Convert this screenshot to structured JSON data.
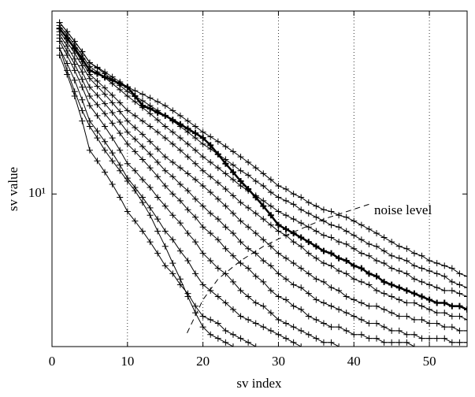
{
  "chart_data": {
    "type": "line",
    "x_label": "sv index",
    "y_label": "sv value",
    "xlim": [
      0,
      55
    ],
    "xticks": [
      0,
      10,
      20,
      30,
      40,
      50
    ],
    "grid": "x",
    "ylim": [
      4,
      30
    ],
    "yticks": [
      {
        "value": 10,
        "label": "10¹"
      }
    ],
    "log_y": true,
    "x": [
      1,
      2,
      3,
      4,
      5,
      6,
      7,
      8,
      9,
      10,
      11,
      12,
      13,
      14,
      15,
      16,
      17,
      18,
      19,
      20,
      21,
      22,
      23,
      24,
      25,
      26,
      27,
      28,
      29,
      30,
      31,
      32,
      33,
      34,
      35,
      36,
      37,
      38,
      39,
      40,
      41,
      42,
      43,
      44,
      45,
      46,
      47,
      48,
      49,
      50,
      51,
      52,
      53,
      54,
      55
    ],
    "series": [
      {
        "color": "#000000",
        "line_width": 1,
        "values": [
          28,
          26.5,
          25,
          23.5,
          22,
          21.4,
          20.8,
          20.2,
          19.6,
          19,
          18.6,
          18.2,
          17.8,
          17.4,
          17,
          16.5,
          16,
          15.5,
          15,
          14.5,
          14.1,
          13.7,
          13.3,
          12.9,
          12.5,
          12.1,
          11.7,
          11.3,
          10.9,
          10.5,
          10.3,
          10,
          9.8,
          9.5,
          9.3,
          9.1,
          9,
          8.8,
          8.7,
          8.5,
          8.3,
          8.1,
          7.9,
          7.7,
          7.5,
          7.3,
          7.2,
          7,
          6.9,
          6.7,
          6.6,
          6.5,
          6.4,
          6.2,
          6.1
        ]
      },
      {
        "color": "#000000",
        "line_width": 1,
        "values": [
          28,
          26.5,
          25,
          23.5,
          22,
          21.3,
          20.6,
          19.9,
          19.2,
          18.5,
          18,
          17.5,
          17,
          16.5,
          16,
          15.5,
          15,
          14.5,
          14,
          13.5,
          13.1,
          12.7,
          12.3,
          11.9,
          11.5,
          11.2,
          10.8,
          10.5,
          10.1,
          9.8,
          9.6,
          9.4,
          9.1,
          8.9,
          8.7,
          8.5,
          8.3,
          8.2,
          8,
          7.8,
          7.6,
          7.4,
          7.3,
          7.1,
          6.9,
          6.8,
          6.7,
          6.5,
          6.4,
          6.3,
          6.2,
          6.1,
          5.9,
          5.8,
          5.7
        ]
      },
      {
        "color": "#000000",
        "line_width": 1,
        "values": [
          27.5,
          26,
          24.5,
          23,
          21.5,
          20.8,
          20.1,
          19.4,
          18.7,
          18,
          17.4,
          16.8,
          16.2,
          15.6,
          15,
          14.5,
          14,
          13.5,
          13,
          12.5,
          12.1,
          11.7,
          11.3,
          10.9,
          10.5,
          10.2,
          9.9,
          9.6,
          9.3,
          9,
          8.8,
          8.6,
          8.4,
          8.2,
          8,
          7.8,
          7.7,
          7.5,
          7.4,
          7.2,
          7,
          6.9,
          6.7,
          6.6,
          6.4,
          6.3,
          6.2,
          6,
          5.9,
          5.8,
          5.7,
          5.6,
          5.6,
          5.5,
          5.4
        ]
      },
      {
        "color": "#000000",
        "line_width": 2.5,
        "values": [
          27,
          25.5,
          24,
          22.5,
          21,
          20.6,
          20.2,
          19.8,
          19.4,
          19,
          18,
          17,
          16.7,
          16.3,
          16,
          15.6,
          15.2,
          14.8,
          14.4,
          14,
          13.4,
          12.7,
          12,
          11.4,
          10.8,
          10.3,
          9.8,
          9.3,
          8.8,
          8.3,
          8.1,
          7.9,
          7.7,
          7.5,
          7.3,
          7.1,
          7,
          6.8,
          6.7,
          6.5,
          6.4,
          6.2,
          6.1,
          5.9,
          5.8,
          5.7,
          5.6,
          5.5,
          5.4,
          5.3,
          5.2,
          5.2,
          5.1,
          5.1,
          5
        ]
      },
      {
        "color": "#000000",
        "line_width": 1,
        "values": [
          27,
          25.4,
          23.8,
          22.1,
          20.5,
          19.7,
          18.9,
          18.1,
          17.3,
          16.5,
          16,
          15.5,
          15,
          14.5,
          14,
          13.5,
          13,
          12.5,
          12,
          11.5,
          11.1,
          10.7,
          10.3,
          9.9,
          9.5,
          9.2,
          8.9,
          8.6,
          8.3,
          8,
          7.8,
          7.5,
          7.3,
          7,
          6.8,
          6.6,
          6.5,
          6.3,
          6.2,
          6,
          5.9,
          5.8,
          5.6,
          5.5,
          5.4,
          5.3,
          5.2,
          5.2,
          5.1,
          5,
          4.9,
          4.9,
          4.8,
          4.8,
          4.7
        ]
      },
      {
        "color": "#000000",
        "line_width": 1,
        "values": [
          26.5,
          24.9,
          23.3,
          21.6,
          20,
          19.1,
          18.2,
          17.3,
          16.4,
          15.5,
          14.9,
          14.3,
          13.7,
          13.1,
          12.5,
          12.1,
          11.7,
          11.3,
          10.9,
          10.5,
          10.1,
          9.7,
          9.3,
          8.9,
          8.5,
          8.2,
          7.9,
          7.6,
          7.3,
          7,
          6.8,
          6.6,
          6.4,
          6.2,
          6,
          5.9,
          5.7,
          5.6,
          5.4,
          5.3,
          5.2,
          5.1,
          5.1,
          5,
          4.9,
          4.8,
          4.8,
          4.7,
          4.7,
          4.6,
          4.6,
          4.5,
          4.5,
          4.4,
          4.4
        ]
      },
      {
        "color": "#000000",
        "line_width": 1,
        "values": [
          26,
          24.3,
          22.5,
          20.8,
          19,
          18.1,
          17.2,
          16.3,
          15.4,
          14.5,
          13.9,
          13.3,
          12.7,
          12.1,
          11.5,
          11.1,
          10.6,
          10.2,
          9.7,
          9.3,
          8.9,
          8.6,
          8.2,
          7.9,
          7.5,
          7.2,
          7,
          6.7,
          6.5,
          6.2,
          6,
          5.8,
          5.7,
          5.5,
          5.3,
          5.2,
          5.1,
          5,
          4.9,
          4.8,
          4.7,
          4.6,
          4.6,
          4.5,
          4.4,
          4.4,
          4.3,
          4.3,
          4.2,
          4.2,
          4.2,
          4.2,
          4.1,
          4.1,
          4.1
        ]
      },
      {
        "color": "#000000",
        "line_width": 1,
        "values": [
          25.5,
          23.6,
          21.8,
          19.9,
          18,
          17.1,
          16.2,
          15.3,
          14.4,
          13.5,
          12.9,
          12.3,
          11.7,
          11.1,
          10.5,
          10,
          9.6,
          9.1,
          8.7,
          8.2,
          7.9,
          7.6,
          7.2,
          6.9,
          6.6,
          6.4,
          6.1,
          5.9,
          5.6,
          5.4,
          5.3,
          5.1,
          5,
          4.8,
          4.7,
          4.6,
          4.5,
          4.5,
          4.4,
          4.3,
          4.3,
          4.2,
          4.2,
          4.1,
          4.1,
          4.1,
          4.1,
          4.0,
          null,
          null,
          null,
          null,
          null,
          null,
          null
        ]
      },
      {
        "color": "#000000",
        "line_width": 1,
        "values": [
          25,
          23,
          21,
          19,
          17,
          16,
          15,
          14,
          13,
          12,
          11.5,
          10.9,
          10.4,
          9.8,
          9.3,
          8.8,
          8.4,
          7.9,
          7.5,
          7,
          6.7,
          6.4,
          6.2,
          5.9,
          5.6,
          5.4,
          5.2,
          5.1,
          4.9,
          4.7,
          4.6,
          4.5,
          4.4,
          4.3,
          4.2,
          4.1,
          4.1,
          4.0,
          null,
          null,
          null,
          null,
          null,
          null,
          null,
          null,
          null,
          null,
          null,
          null,
          null,
          null,
          null,
          null,
          null
        ]
      },
      {
        "color": "#000000",
        "line_width": 1,
        "values": [
          24,
          21.9,
          19.8,
          17.6,
          15.5,
          14.6,
          13.7,
          12.8,
          11.9,
          11,
          10.4,
          9.8,
          9.2,
          8.6,
          8,
          7.6,
          7.1,
          6.7,
          6.2,
          5.8,
          5.6,
          5.4,
          5.2,
          5,
          4.8,
          4.7,
          4.6,
          4.5,
          4.4,
          4.3,
          4.2,
          4.1,
          4.0,
          null,
          null,
          null,
          null,
          null,
          null,
          null,
          null,
          null,
          null,
          null,
          null,
          null,
          null,
          null,
          null,
          null,
          null,
          null,
          null,
          null,
          null
        ]
      },
      {
        "color": "#000000",
        "line_width": 1,
        "values": [
          23,
          20.5,
          18,
          15.5,
          13,
          12.2,
          11.4,
          10.6,
          9.8,
          9,
          8.5,
          8,
          7.5,
          7,
          6.5,
          6.2,
          5.8,
          5.5,
          5.1,
          4.8,
          4.7,
          4.6,
          4.4,
          4.3,
          4.2,
          4.1,
          4.0,
          null,
          null,
          null,
          null,
          null,
          null,
          null,
          null,
          null,
          null,
          null,
          null,
          null,
          null,
          null,
          null,
          null,
          null,
          null,
          null,
          null,
          null,
          null,
          null,
          null,
          null,
          null,
          null
        ]
      },
      {
        "color": "#000000",
        "line_width": 1,
        "values": [
          24,
          21,
          18.5,
          16.5,
          15,
          14,
          13,
          12.2,
          11.5,
          10.8,
          10.2,
          9.5,
          8.8,
          8,
          7.3,
          6.6,
          6,
          5.4,
          4.9,
          4.5,
          4.3,
          4.2,
          4.1,
          4.0,
          null,
          null,
          null,
          null,
          null,
          null,
          null,
          null,
          null,
          null,
          null,
          null,
          null,
          null,
          null,
          null,
          null,
          null,
          null,
          null,
          null,
          null,
          null,
          null,
          null,
          null,
          null,
          null,
          null,
          null,
          null
        ]
      }
    ],
    "noise_curve": {
      "color": "#000000",
      "dashed": true,
      "x": [
        17.9,
        20,
        22,
        25,
        28,
        31,
        36,
        42
      ],
      "values": [
        4.34,
        5.3,
        6.0,
        6.7,
        7.3,
        7.8,
        8.6,
        9.4
      ]
    },
    "annotation": "noise level"
  }
}
